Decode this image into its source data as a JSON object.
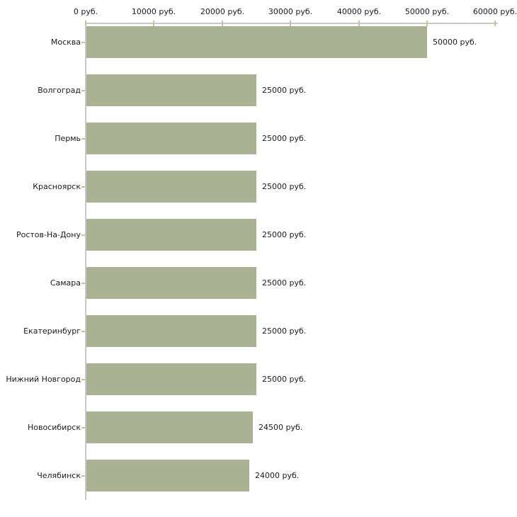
{
  "chart_data": {
    "type": "bar",
    "orientation": "horizontal",
    "title": "",
    "xlabel": "",
    "ylabel": "",
    "unit": "руб.",
    "categories": [
      "Москва",
      "Волгоград",
      "Пермь",
      "Красноярск",
      "Ростов-На-Дону",
      "Самара",
      "Екатеринбург",
      "Нижний Новгород",
      "Новосибирск",
      "Челябинск"
    ],
    "values": [
      50000,
      25000,
      25000,
      25000,
      25000,
      25000,
      25000,
      25000,
      24500,
      24000
    ],
    "value_labels": [
      "50000 руб.",
      "25000 руб.",
      "25000 руб.",
      "25000 руб.",
      "25000 руб.",
      "25000 руб.",
      "25000 руб.",
      "25000 руб.",
      "24500 руб.",
      "24000 руб."
    ],
    "x_ticks": [
      0,
      10000,
      20000,
      30000,
      40000,
      50000,
      60000
    ],
    "x_tick_labels": [
      "0 руб.",
      "10000 руб.",
      "20000 руб.",
      "30000 руб.",
      "40000 руб.",
      "50000 руб.",
      "60000 руб."
    ],
    "xlim": [
      0,
      60000
    ],
    "grid": false,
    "legend": null,
    "colors": {
      "bar": "#aab294",
      "axis_line": "#c8c8c8",
      "tick_mark": "#c8c48a",
      "text": "#1a1a1a",
      "background": "#ffffff"
    }
  }
}
